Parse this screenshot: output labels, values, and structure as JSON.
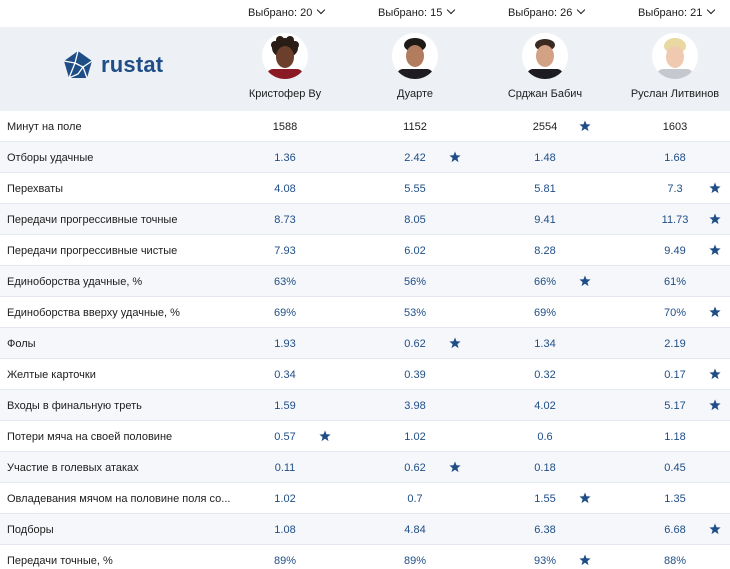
{
  "selectors": [
    {
      "label": "Выбрано: 20"
    },
    {
      "label": "Выбрано: 15"
    },
    {
      "label": "Выбрано: 26"
    },
    {
      "label": "Выбрано: 21"
    }
  ],
  "brand": {
    "name": "rustat",
    "color": "#1f4e86"
  },
  "players": [
    {
      "name": "Кристофер Ву"
    },
    {
      "name": "Дуарте"
    },
    {
      "name": "Срджан Бабич"
    },
    {
      "name": "Руслан Литвинов"
    }
  ],
  "rows": [
    {
      "label": "Минут на поле",
      "values": [
        "1588",
        "1152",
        "2554",
        "1603"
      ],
      "best": 2
    },
    {
      "label": "Отборы удачные",
      "values": [
        "1.36",
        "2.42",
        "1.48",
        "1.68"
      ],
      "best": 1
    },
    {
      "label": "Перехваты",
      "values": [
        "4.08",
        "5.55",
        "5.81",
        "7.3"
      ],
      "best": 3
    },
    {
      "label": "Передачи прогрессивные точные",
      "values": [
        "8.73",
        "8.05",
        "9.41",
        "11.73"
      ],
      "best": 3
    },
    {
      "label": "Передачи прогрессивные чистые",
      "values": [
        "7.93",
        "6.02",
        "8.28",
        "9.49"
      ],
      "best": 3
    },
    {
      "label": "Единоборства удачные, %",
      "values": [
        "63%",
        "56%",
        "66%",
        "61%"
      ],
      "best": 2
    },
    {
      "label": "Единоборства вверху удачные, %",
      "values": [
        "69%",
        "53%",
        "69%",
        "70%"
      ],
      "best": 3
    },
    {
      "label": "Фолы",
      "values": [
        "1.93",
        "0.62",
        "1.34",
        "2.19"
      ],
      "best": 1
    },
    {
      "label": "Желтые карточки",
      "values": [
        "0.34",
        "0.39",
        "0.32",
        "0.17"
      ],
      "best": 3
    },
    {
      "label": "Входы в финальную треть",
      "values": [
        "1.59",
        "3.98",
        "4.02",
        "5.17"
      ],
      "best": 3
    },
    {
      "label": "Потери мяча на своей половине",
      "values": [
        "0.57",
        "1.02",
        "0.6",
        "1.18"
      ],
      "best": 0
    },
    {
      "label": "Участие в голевых атаках",
      "values": [
        "0.11",
        "0.62",
        "0.18",
        "0.45"
      ],
      "best": 1
    },
    {
      "label": "Овладевания мячом на половине поля со...",
      "values": [
        "1.02",
        "0.7",
        "1.55",
        "1.35"
      ],
      "best": 2
    },
    {
      "label": "Подборы",
      "values": [
        "1.08",
        "4.84",
        "6.38",
        "6.68"
      ],
      "best": 3
    },
    {
      "label": "Передачи точные, %",
      "values": [
        "89%",
        "89%",
        "93%",
        "88%"
      ],
      "best": 2
    }
  ],
  "icons": {
    "best": "star-icon",
    "selector": "chevron-down-icon"
  }
}
